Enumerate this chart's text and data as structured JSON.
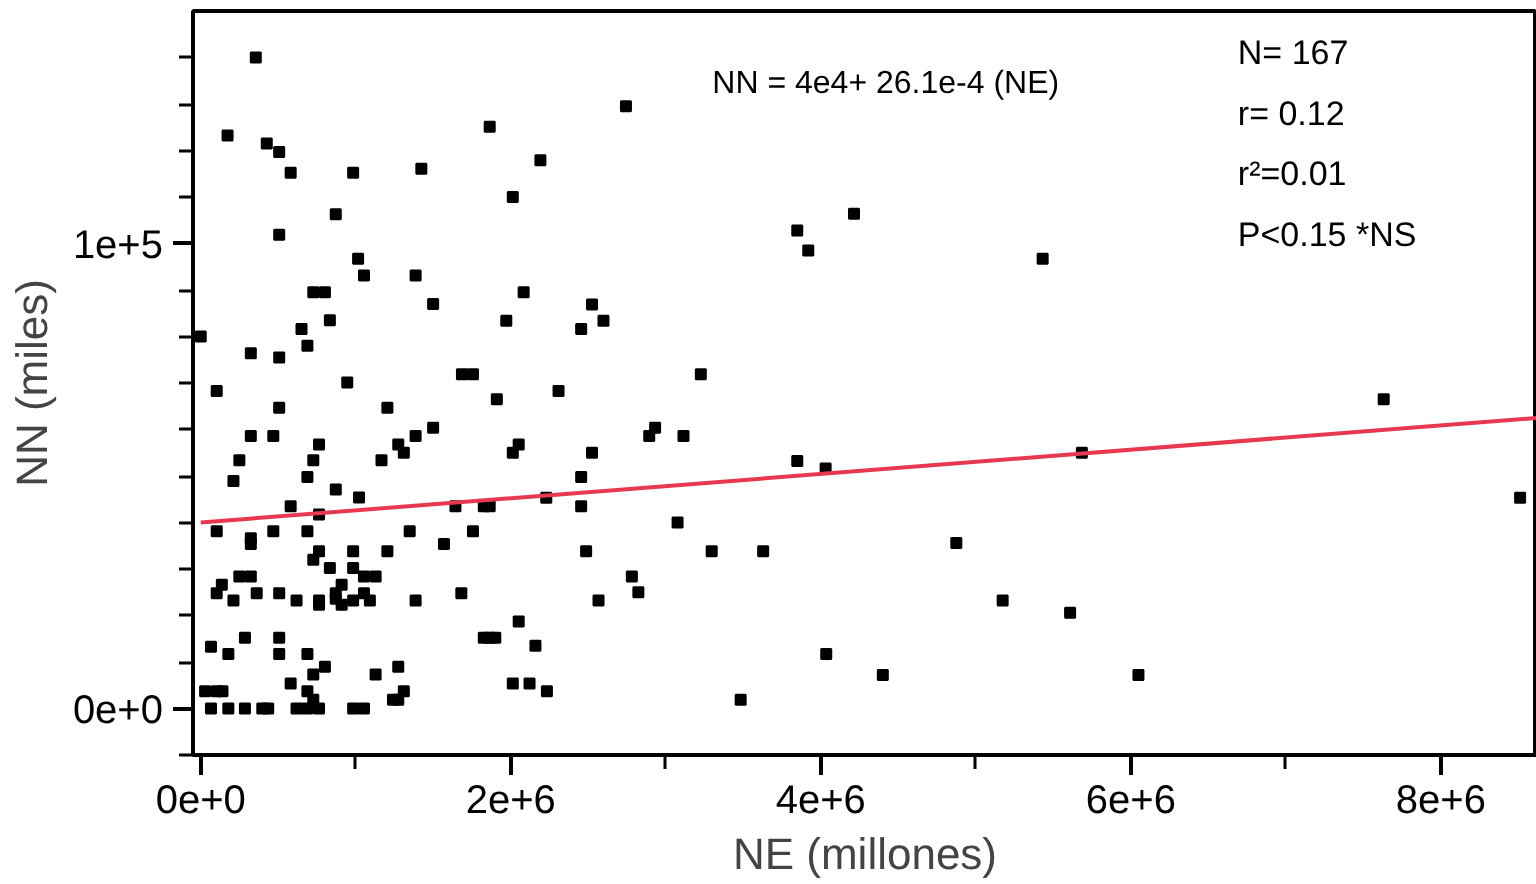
{
  "chart_data": {
    "type": "scatter",
    "xlabel": "NE (millones)",
    "ylabel": "NN (miles)",
    "annotations": [
      "NN = 4e4+ 26.1e-4 (NE)",
      "N= 167",
      "r= 0.12",
      "r²=0.01",
      "P<0.15 *NS"
    ],
    "xlim": [
      -50000,
      8620000
    ],
    "ylim": [
      -10000,
      150000
    ],
    "xticks": [
      {
        "value": 0,
        "label": "0e+0"
      },
      {
        "value": 1000000,
        "label": null
      },
      {
        "value": 2000000,
        "label": "2e+6"
      },
      {
        "value": 3000000,
        "label": null
      },
      {
        "value": 4000000,
        "label": "4e+6"
      },
      {
        "value": 5000000,
        "label": null
      },
      {
        "value": 6000000,
        "label": "6e+6"
      },
      {
        "value": 7000000,
        "label": null
      },
      {
        "value": 8000000,
        "label": "8e+6"
      }
    ],
    "yticks": [
      {
        "value": -10000,
        "label": null
      },
      {
        "value": 0,
        "label": "0e+0"
      },
      {
        "value": 10000,
        "label": null
      },
      {
        "value": 20000,
        "label": null
      },
      {
        "value": 30000,
        "label": null
      },
      {
        "value": 40000,
        "label": null
      },
      {
        "value": 50000,
        "label": null
      },
      {
        "value": 60000,
        "label": null
      },
      {
        "value": 70000,
        "label": null
      },
      {
        "value": 80000,
        "label": null
      },
      {
        "value": 90000,
        "label": null
      },
      {
        "value": 100000,
        "label": "1e+5"
      },
      {
        "value": 110000,
        "label": null
      },
      {
        "value": 120000,
        "label": null
      },
      {
        "value": 130000,
        "label": null
      },
      {
        "value": 140000,
        "label": null
      }
    ],
    "grid": false,
    "series": [
      {
        "marker": "square",
        "color": "#000000",
        "x": [
          355000,
          173000,
          426000,
          506000,
          580000,
          983000,
          1423000,
          1864000,
          871000,
          506000,
          1015000,
          1053000,
          1386000,
          726000,
          801000,
          1499000,
          833000,
          650000,
          0,
          688000,
          323000,
          506000,
          945000,
          1685000,
          1756000,
          1910000,
          103000,
          506000,
          1204000,
          1499000,
          323000,
          468000,
          1386000,
          763000,
          1274000,
          1310000,
          249000,
          726000,
          1166000,
          211000,
          688000,
          871000,
          1021000,
          580000,
          763000,
          1643000,
          1826000,
          1864000,
          103000,
          468000,
          688000,
          1348000,
          1756000,
          323000,
          323000,
          1569000,
          763000,
          983000,
          1204000,
          726000,
          833000,
          983000,
          249000,
          323000,
          1053000,
          1128000,
          136000,
          909000,
          103000,
          361000,
          506000,
          871000,
          1053000,
          1681000,
          211000,
          618000,
          763000,
          763000,
          871000,
          909000,
          983000,
          1091000,
          1386000,
          285000,
          506000,
          1826000,
          1864000,
          66000,
          178000,
          506000,
          688000,
          801000,
          726000,
          1128000,
          1274000,
          580000,
          28000,
          103000,
          140000,
          688000,
          1310000,
          726000,
          1240000,
          1274000,
          66000,
          178000,
          285000,
          397000,
          435000,
          618000,
          688000,
          763000,
          983000,
          1053000,
          2743000,
          2191000,
          2013000,
          3848000,
          3919000,
          4214000,
          2083000,
          1971000,
          2524000,
          2454000,
          2598000,
          3226000,
          2308000,
          2893000,
          2931000,
          3114000,
          2013000,
          2051000,
          2524000,
          2454000,
          3848000,
          4031000,
          2229000,
          2454000,
          3076000,
          2486000,
          3296000,
          3628000,
          4874000,
          2781000,
          2823000,
          2566000,
          5173000,
          1900000,
          2051000,
          2159000,
          4035000,
          2013000,
          2121000,
          2233000,
          3483000,
          4400000,
          5431000,
          7631000,
          5684000,
          8511000,
          5608000,
          6049000
        ],
        "values": [
          140000,
          123200,
          121500,
          119700,
          115200,
          115200,
          116100,
          125100,
          106300,
          101900,
          96700,
          93100,
          93100,
          89500,
          89500,
          87000,
          83500,
          81600,
          80000,
          78000,
          76400,
          75500,
          70100,
          71900,
          71900,
          66500,
          68300,
          64700,
          64700,
          60400,
          58600,
          58600,
          58600,
          56800,
          56800,
          55000,
          53400,
          53400,
          53400,
          48900,
          49800,
          47100,
          45400,
          43500,
          41700,
          43500,
          43500,
          43500,
          38100,
          38100,
          38100,
          38100,
          38100,
          36600,
          35400,
          35400,
          33800,
          33800,
          33800,
          32000,
          30200,
          30200,
          28400,
          28400,
          28400,
          28400,
          26600,
          26600,
          24800,
          24800,
          24800,
          24800,
          24800,
          24800,
          23200,
          23200,
          23200,
          22300,
          23600,
          22300,
          23200,
          23200,
          23200,
          15200,
          15200,
          15200,
          15200,
          13300,
          11700,
          11700,
          11700,
          9000,
          7300,
          7300,
          9000,
          5400,
          3700,
          3700,
          3700,
          3700,
          3700,
          1900,
          1900,
          1900,
          0,
          0,
          0,
          0,
          0,
          0,
          0,
          0,
          0,
          0,
          129500,
          117900,
          110000,
          102800,
          98500,
          106400,
          89500,
          83400,
          86900,
          81600,
          83400,
          71900,
          68300,
          58600,
          60400,
          58600,
          55000,
          56800,
          55000,
          49800,
          53200,
          51600,
          45300,
          43500,
          40000,
          33800,
          33800,
          33800,
          35600,
          28400,
          25000,
          23200,
          23200,
          15200,
          18700,
          13500,
          11700,
          5400,
          5400,
          3700,
          1900,
          7200,
          96700,
          66500,
          55000,
          45300,
          20600,
          7200
        ]
      },
      {
        "type": "line",
        "color": "#e8384f",
        "x": [
          0,
          8620000
        ],
        "values": [
          40000,
          62500
        ]
      }
    ]
  }
}
